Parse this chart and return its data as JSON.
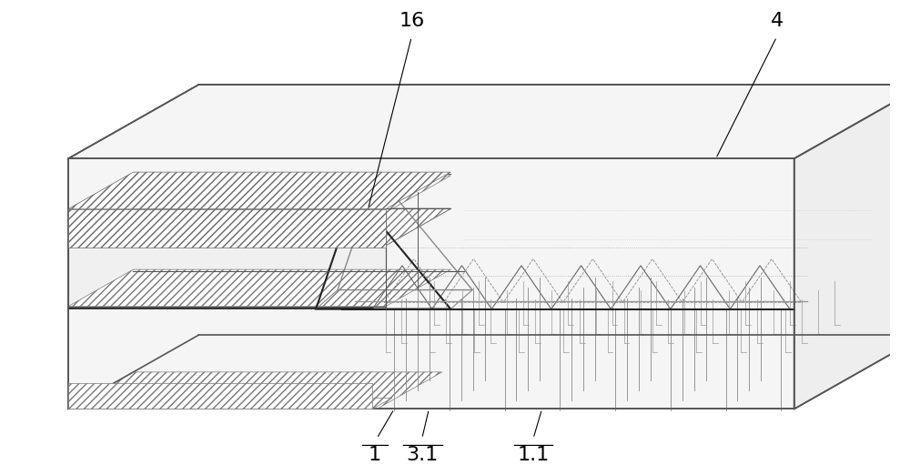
{
  "bg_color": "#ffffff",
  "line_color": "#555555",
  "line_color_dark": "#222222",
  "hatch_color": "#777777",
  "label_16": "16",
  "label_4": "4",
  "label_1": "1",
  "label_31": "3.1",
  "label_11": "1.1",
  "font_size": 16
}
